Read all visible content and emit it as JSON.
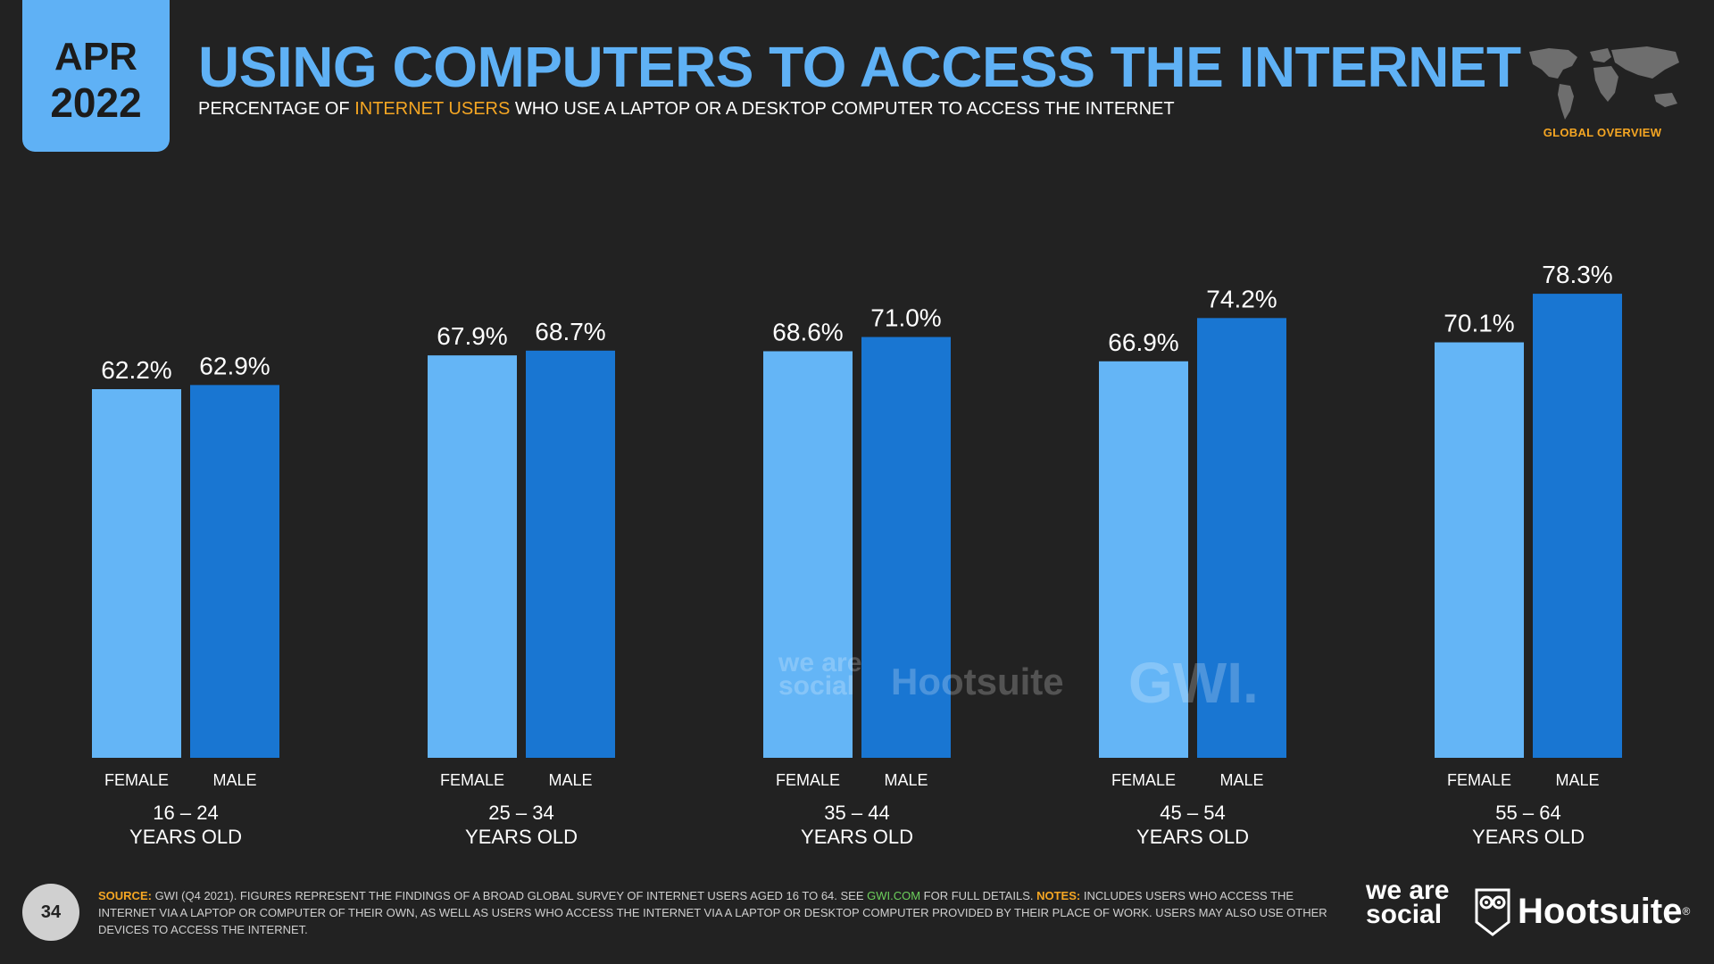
{
  "badge": {
    "month": "APR",
    "year": "2022"
  },
  "header": {
    "title": "USING COMPUTERS TO ACCESS THE INTERNET",
    "subtitle_pre": "PERCENTAGE OF ",
    "subtitle_highlight": "INTERNET USERS",
    "subtitle_post": " WHO USE A LAPTOP OR A DESKTOP COMPUTER TO ACCESS THE INTERNET",
    "region_label": "GLOBAL OVERVIEW"
  },
  "colors": {
    "background": "#222222",
    "female": "#64b5f6",
    "male": "#1976d2",
    "title": "#5fb1f5",
    "highlight": "#f5a623",
    "link": "#6dd15c"
  },
  "chart_data": {
    "type": "bar",
    "categories": [
      "16 – 24",
      "25 – 34",
      "35 – 44",
      "45 – 54",
      "55 – 64"
    ],
    "category_suffix": "YEARS OLD",
    "series": [
      {
        "name": "FEMALE",
        "values": [
          62.2,
          67.9,
          68.6,
          66.9,
          70.1
        ],
        "labels": [
          "62.2%",
          "67.9%",
          "68.6%",
          "66.9%",
          "70.1%"
        ]
      },
      {
        "name": "MALE",
        "values": [
          62.9,
          68.7,
          71.0,
          74.2,
          78.3
        ],
        "labels": [
          "62.9%",
          "68.7%",
          "71.0%",
          "74.2%",
          "78.3%"
        ]
      }
    ],
    "ylim": [
      0,
      100
    ],
    "grid": false,
    "legend": "none"
  },
  "watermarks": {
    "we_are_social": "we are social",
    "hootsuite": "Hootsuite",
    "gwi": "GWI."
  },
  "footer": {
    "source_label": "SOURCE:",
    "source_text": " GWI (Q4 2021). FIGURES REPRESENT THE FINDINGS OF A BROAD GLOBAL SURVEY OF INTERNET USERS AGED 16 TO 64. SEE ",
    "source_link": "GWI.COM",
    "source_after": " FOR FULL DETAILS. ",
    "notes_label": "NOTES:",
    "notes_text": " INCLUDES USERS WHO ACCESS THE INTERNET VIA A LAPTOP OR COMPUTER OF THEIR OWN, AS WELL AS USERS WHO ACCESS THE INTERNET VIA A LAPTOP OR DESKTOP COMPUTER PROVIDED BY THEIR PLACE OF WORK. USERS MAY ALSO USE OTHER DEVICES TO ACCESS THE INTERNET.",
    "page_number": "34"
  },
  "logos": {
    "we_are_social": "we are social",
    "hootsuite": "Hootsuite"
  },
  "icons": {
    "map": "world-map-icon",
    "owl": "owl-icon"
  }
}
